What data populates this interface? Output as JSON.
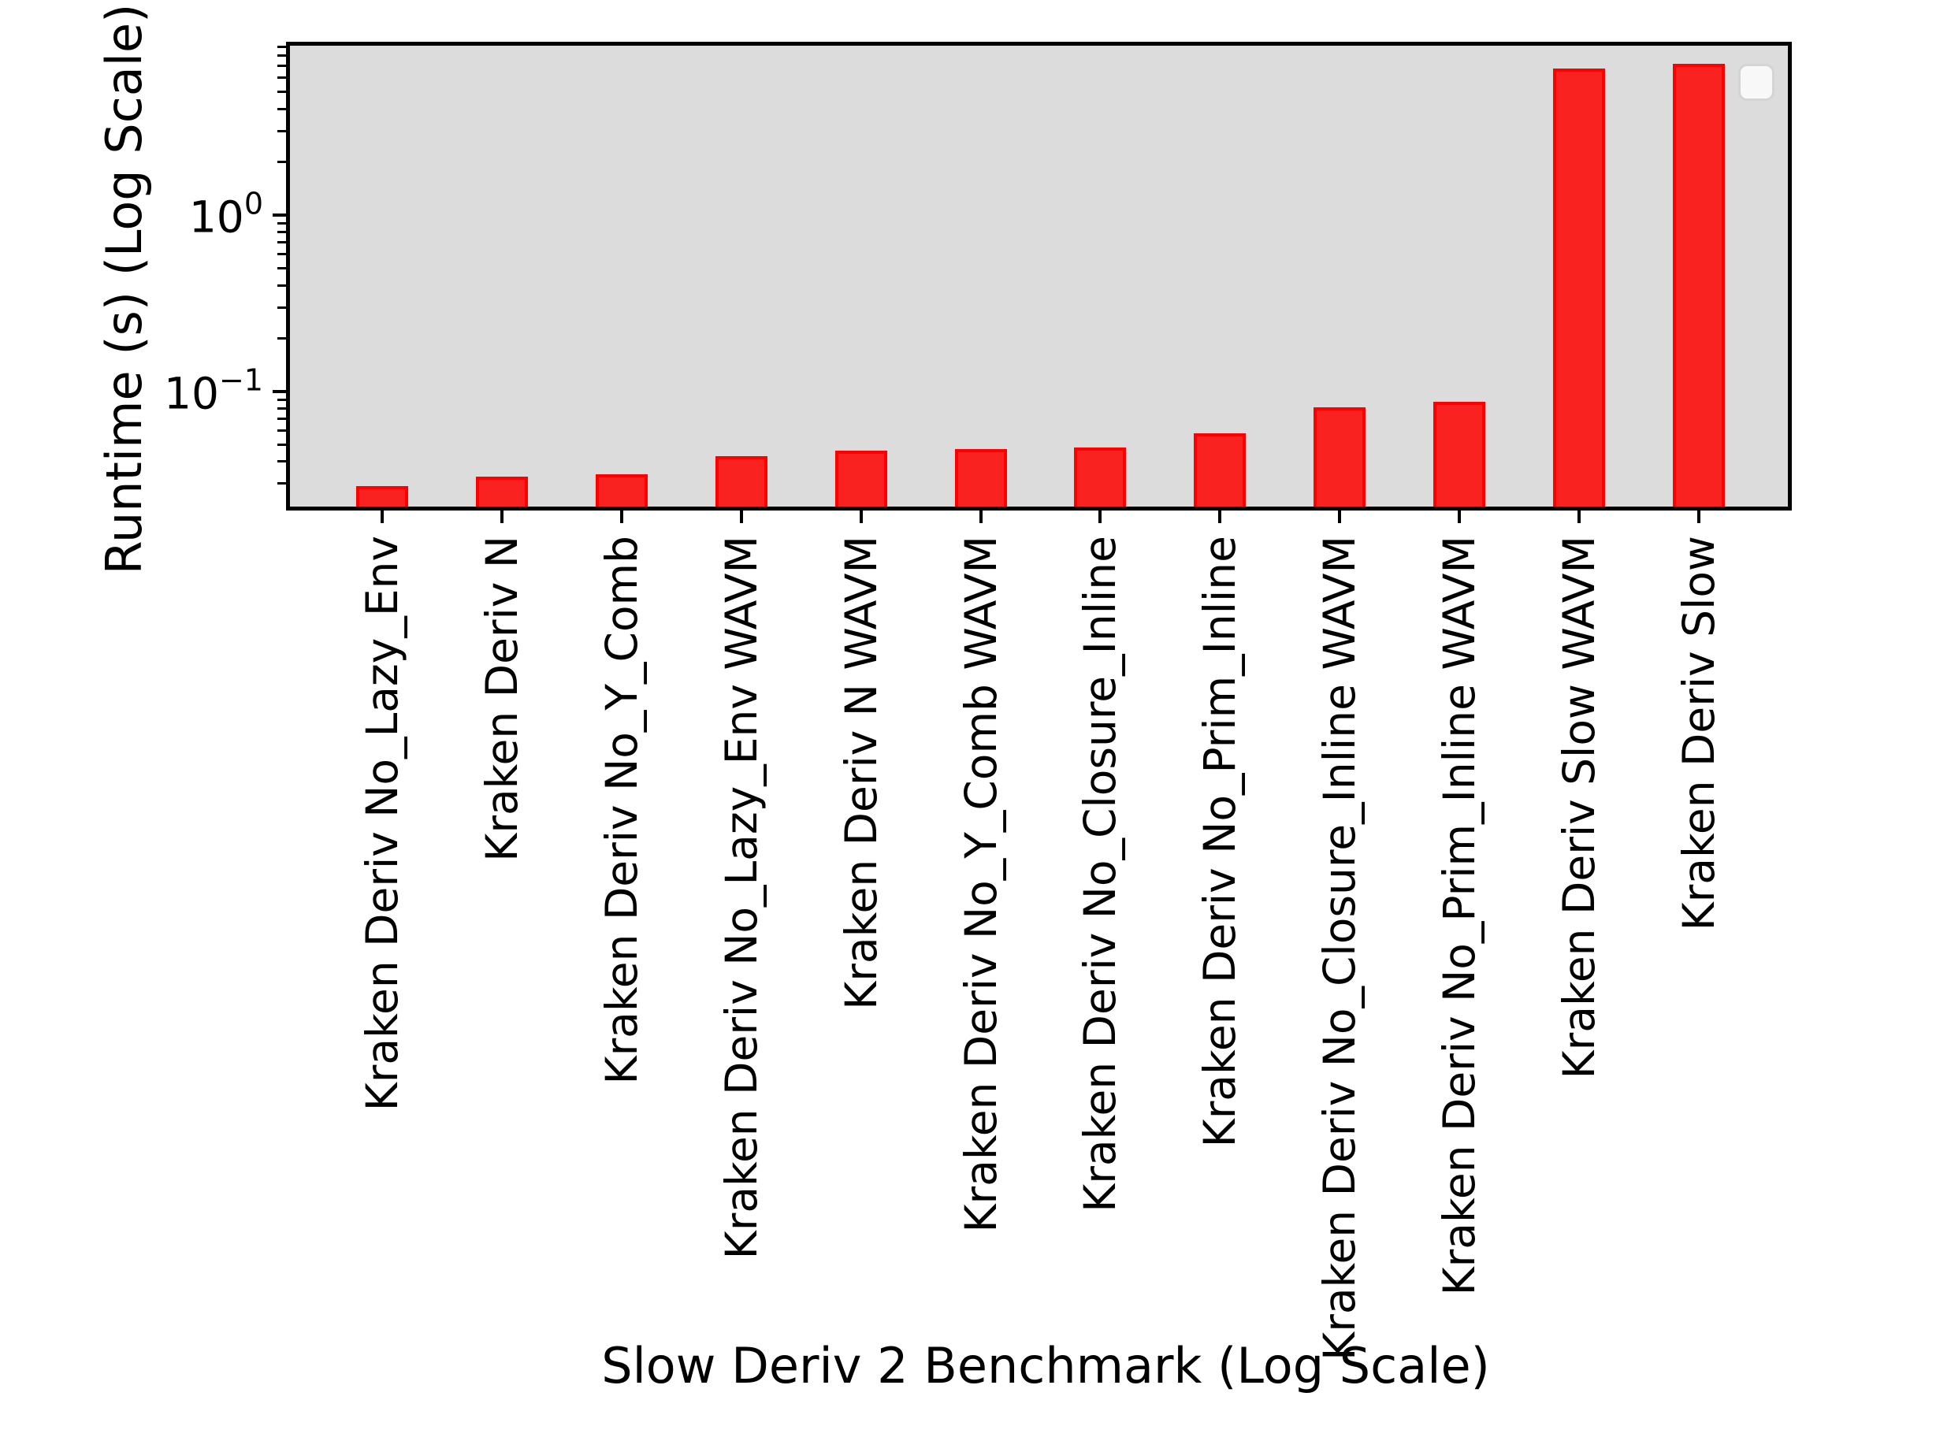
{
  "chart_data": {
    "type": "bar",
    "title": "",
    "xlabel": "Slow Deriv 2 Benchmark (Log Scale)",
    "ylabel": "Runtime (s) (Log Scale)",
    "yscale": "log",
    "ylim": [
      0.0218,
      9.31
    ],
    "grid": false,
    "categories": [
      "Kraken Deriv No_Lazy_Env",
      "Kraken Deriv N",
      "Kraken Deriv No_Y_Comb",
      "Kraken Deriv No_Lazy_Env WAVM",
      "Kraken Deriv N WAVM",
      "Kraken Deriv No_Y_Comb WAVM",
      "Kraken Deriv No_Closure_Inline",
      "Kraken Deriv No_Prim_Inline",
      "Kraken Deriv No_Closure_Inline WAVM",
      "Kraken Deriv No_Prim_Inline WAVM",
      "Kraken Deriv Slow WAVM",
      "Kraken Deriv Slow"
    ],
    "values": [
      0.029,
      0.033,
      0.034,
      0.043,
      0.046,
      0.047,
      0.048,
      0.058,
      0.081,
      0.087,
      6.8,
      7.2
    ],
    "yticks_major": [
      {
        "value": 1,
        "base": "10",
        "exponent": "0"
      },
      {
        "value": 0.1,
        "base": "10",
        "exponent": "−1"
      }
    ],
    "legend": {
      "visible": true,
      "entries": []
    },
    "colors": {
      "bar_fill": "#ff0000",
      "bar_fill_alpha": 0.85,
      "bar_edge": "#ff0000",
      "plot_background": "#dcdcdc",
      "spine": "#000000",
      "figure_background": "#ffffff",
      "legend_border": "#d4d4d4"
    }
  }
}
